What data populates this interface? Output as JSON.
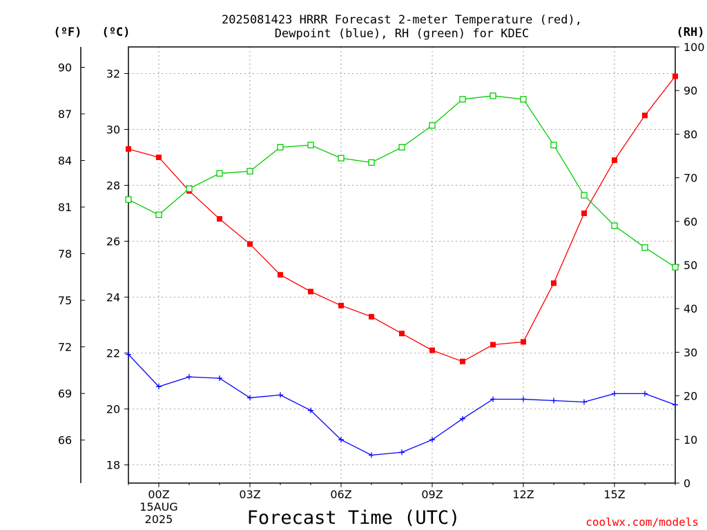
{
  "chart_data": {
    "type": "line",
    "title_lines": [
      "2025081423 HRRR Forecast 2-meter Temperature (red),",
      "Dewpoint (blue), RH (green) for KDEC"
    ],
    "xlabel": "Forecast Time (UTC)",
    "credit": "coolwx.com/models",
    "left_units": {
      "fahrenheit": "(ºF)",
      "celsius": "(ºC)"
    },
    "right_unit": "(RH)",
    "x_hours": [
      -1,
      0,
      1,
      2,
      3,
      4,
      5,
      6,
      7,
      8,
      9,
      10,
      11,
      12,
      13,
      14,
      15,
      16,
      17
    ],
    "x_ticks": [
      {
        "hour": 0,
        "label": "00Z",
        "sublabels": [
          "15AUG",
          "2025"
        ]
      },
      {
        "hour": 3,
        "label": "03Z",
        "sublabels": []
      },
      {
        "hour": 6,
        "label": "06Z",
        "sublabels": []
      },
      {
        "hour": 9,
        "label": "09Z",
        "sublabels": []
      },
      {
        "hour": 12,
        "label": "12Z",
        "sublabels": []
      },
      {
        "hour": 15,
        "label": "15Z",
        "sublabels": []
      }
    ],
    "xlim": [
      -1,
      17
    ],
    "celsius_ylim": [
      17.35,
      32.95
    ],
    "celsius_ticks": [
      18,
      20,
      22,
      24,
      26,
      28,
      30,
      32
    ],
    "fahrenheit_ticks": [
      66,
      69,
      72,
      75,
      78,
      81,
      84,
      87,
      90
    ],
    "rh_ylim": [
      0,
      100
    ],
    "rh_ticks": [
      0,
      10,
      20,
      30,
      40,
      50,
      60,
      70,
      80,
      90,
      100
    ],
    "grid": true,
    "series": [
      {
        "name": "Temperature",
        "axis": "celsius",
        "color": "#ff0000",
        "marker": "filled-square",
        "values": [
          29.3,
          29.0,
          27.8,
          26.8,
          25.9,
          24.8,
          24.2,
          23.7,
          23.3,
          22.7,
          22.1,
          21.7,
          22.3,
          22.4,
          24.5,
          27.0,
          28.9,
          30.5,
          31.9
        ]
      },
      {
        "name": "Dewpoint",
        "axis": "celsius",
        "color": "#0000ff",
        "marker": "plus",
        "values": [
          21.95,
          20.8,
          21.15,
          21.1,
          20.4,
          20.5,
          19.95,
          18.9,
          18.35,
          18.45,
          18.9,
          19.65,
          20.35,
          20.35,
          20.3,
          20.25,
          20.55,
          20.55,
          20.15
        ]
      },
      {
        "name": "RH",
        "axis": "rh",
        "color": "#00cc00",
        "marker": "open-square",
        "values": [
          65.0,
          61.5,
          67.5,
          71.0,
          71.5,
          77.0,
          77.5,
          74.5,
          73.5,
          77.0,
          82.0,
          88.0,
          88.8,
          88.0,
          77.5,
          66.0,
          59.0,
          54.0,
          49.5
        ]
      }
    ]
  }
}
